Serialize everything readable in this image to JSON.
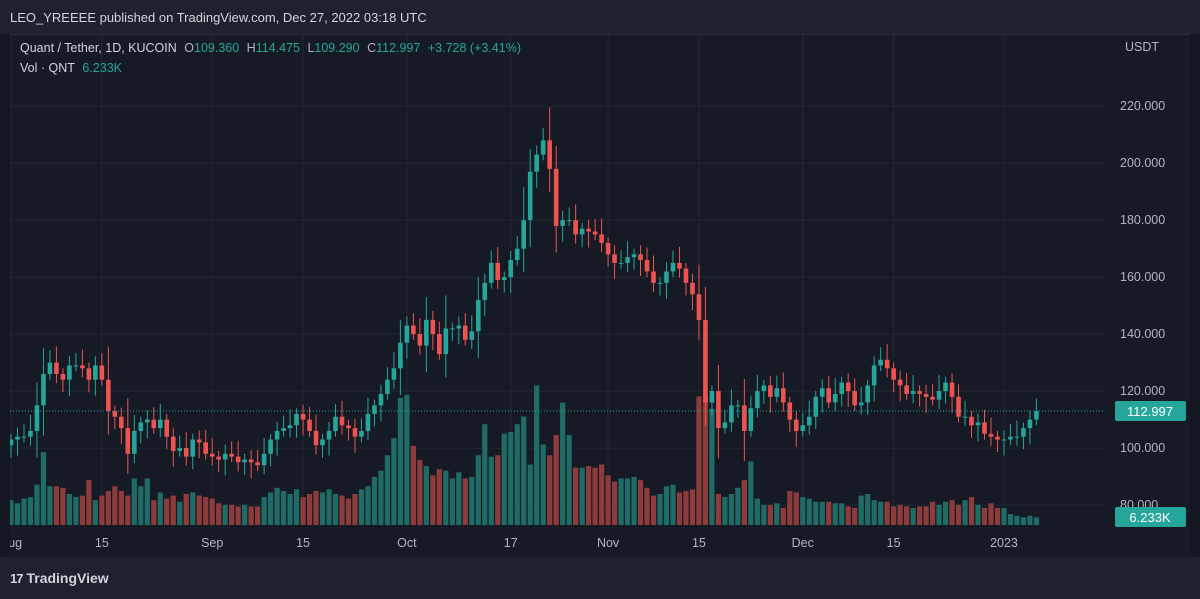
{
  "header": {
    "publisher_line": "LEO_YREEEE published on TradingView.com, Dec 27, 2022 03:18 UTC"
  },
  "legend": {
    "symbol": "Quant / Tether, 1D, KUCOIN",
    "open_label": "O",
    "open": "109.360",
    "high_label": "H",
    "high": "114.475",
    "low_label": "L",
    "low": "109.290",
    "close_label": "C",
    "close": "112.997",
    "change": "+3.728 (+3.41%)",
    "vol_label": "Vol · QNT",
    "vol_value": "6.233K"
  },
  "footer": {
    "logo_text": "TradingView",
    "logo_mark": "17"
  },
  "colors": {
    "up": "#26a69a",
    "down": "#ef5350",
    "up_vol": "#1f6c66",
    "down_vol": "#8e3b3c",
    "price_badge": "#26a69a",
    "bg": "#161a25"
  },
  "chart_data": {
    "type": "candlestick",
    "y_axis_title": "USDT",
    "y_ticks": [
      80,
      100,
      120,
      140,
      160,
      180,
      200,
      220
    ],
    "y_tick_labels": [
      "80.000",
      "100.000",
      "120.000",
      "140.000",
      "160.000",
      "180.000",
      "200.000",
      "220.000"
    ],
    "ylim": [
      73,
      245
    ],
    "x_tick_labels": [
      {
        "date": "2022-08-01",
        "label": "Aug"
      },
      {
        "date": "2022-08-15",
        "label": "15"
      },
      {
        "date": "2022-09-01",
        "label": "Sep"
      },
      {
        "date": "2022-09-15",
        "label": "15"
      },
      {
        "date": "2022-10-01",
        "label": "Oct"
      },
      {
        "date": "2022-10-17",
        "label": "17"
      },
      {
        "date": "2022-11-01",
        "label": "Nov"
      },
      {
        "date": "2022-11-15",
        "label": "15"
      },
      {
        "date": "2022-12-01",
        "label": "Dec"
      },
      {
        "date": "2022-12-15",
        "label": "15"
      },
      {
        "date": "2023-01-01",
        "label": "2023"
      }
    ],
    "last_price_label": "112.997",
    "last_price": 112.997,
    "volume_label": "6.233K",
    "first_date": "2022-08-01",
    "closes": [
      103,
      104,
      104,
      106,
      115,
      126,
      130,
      126,
      124,
      129,
      129,
      128,
      124,
      129,
      124,
      113,
      111,
      107,
      98,
      106,
      109,
      110,
      107,
      110,
      104,
      99,
      100,
      97,
      103,
      102,
      98,
      97,
      96,
      98,
      97,
      95,
      96,
      95,
      94,
      98,
      103,
      106,
      107,
      108,
      112,
      110,
      106,
      101,
      103,
      106,
      111,
      108,
      107,
      104,
      106,
      112,
      115,
      119,
      124,
      128,
      137,
      143,
      140,
      136,
      145,
      140,
      133,
      142,
      142,
      143,
      138,
      141,
      152,
      158,
      165,
      159,
      160,
      166,
      170,
      180,
      197,
      203,
      208,
      198,
      178,
      180,
      180,
      175,
      177,
      176,
      175,
      172,
      168,
      165,
      165,
      167,
      168,
      166,
      162,
      158,
      158,
      162,
      165,
      163,
      158,
      154,
      145,
      116,
      120,
      107,
      109,
      115,
      115,
      106,
      114,
      120,
      122,
      118,
      121,
      116,
      110,
      106,
      108,
      111,
      118,
      121,
      116,
      119,
      123,
      120,
      115,
      116,
      122,
      129,
      131,
      128,
      124,
      122,
      119,
      120,
      119,
      118,
      117,
      120,
      123,
      118,
      111,
      111,
      108,
      109,
      105,
      104,
      103,
      103,
      104,
      104,
      107,
      110,
      113
    ],
    "volumes": [
      1.6,
      1.4,
      1.7,
      1.8,
      2.6,
      4.7,
      2.5,
      2.5,
      2.4,
      2.0,
      1.8,
      1.9,
      2.9,
      1.6,
      1.9,
      2.2,
      2.5,
      2.2,
      1.9,
      3.0,
      2.5,
      3.0,
      1.6,
      2.1,
      1.7,
      1.9,
      1.5,
      2.0,
      2.1,
      1.9,
      1.8,
      1.7,
      1.4,
      1.3,
      1.3,
      1.2,
      1.3,
      1.2,
      1.2,
      1.8,
      2.1,
      2.4,
      2.2,
      2.0,
      2.3,
      1.8,
      2.0,
      2.2,
      2.1,
      2.3,
      2.0,
      1.9,
      1.7,
      2.0,
      2.3,
      2.5,
      3.1,
      3.5,
      4.5,
      5.6,
      8.2,
      8.4,
      5.1,
      4.2,
      3.8,
      3.2,
      3.6,
      3.5,
      3.0,
      3.4,
      3.0,
      3.1,
      4.5,
      6.5,
      4.4,
      4.5,
      5.9,
      6.0,
      6.5,
      7.0,
      3.9,
      9.0,
      5.2,
      4.5,
      5.8,
      7.9,
      5.8,
      3.7,
      3.7,
      3.8,
      3.7,
      3.9,
      3.2,
      2.8,
      3.0,
      3.0,
      3.1,
      2.9,
      2.4,
      1.9,
      2.0,
      2.5,
      2.6,
      2.1,
      2.2,
      2.3,
      8.3,
      8.4,
      7.5,
      2.0,
      1.8,
      2.0,
      2.4,
      2.9,
      4.1,
      1.7,
      1.3,
      1.3,
      1.4,
      1.1,
      2.2,
      2.1,
      1.8,
      1.7,
      1.5,
      1.5,
      1.5,
      1.4,
      1.4,
      1.2,
      1.1,
      1.9,
      2.0,
      1.6,
      1.5,
      1.5,
      1.2,
      1.3,
      1.2,
      1.1,
      1.2,
      1.2,
      1.5,
      1.3,
      1.5,
      1.6,
      1.3,
      1.6,
      1.8,
      1.3,
      1.1,
      1.4,
      1.1,
      1.1,
      0.7,
      0.6,
      0.5,
      0.6,
      0.5
    ]
  }
}
